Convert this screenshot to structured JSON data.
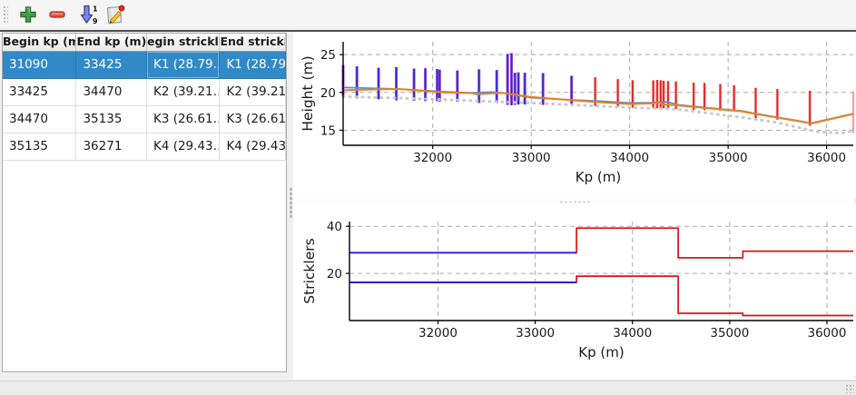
{
  "window": {
    "background": "#f0f0f0",
    "statusbar_text": ""
  },
  "toolbar": {
    "buttons": [
      {
        "name": "add",
        "icon": "plus-icon"
      },
      {
        "name": "remove",
        "icon": "minus-icon"
      },
      {
        "name": "sort",
        "icon": "sort-numeric-icon",
        "digits_top": "1",
        "digits_bottom": "9"
      },
      {
        "name": "edit",
        "icon": "edit-pencil-icon"
      }
    ]
  },
  "table": {
    "headers": [
      "Begin kp (m)",
      "End kp (m)",
      "egin strickle",
      "End strickler"
    ],
    "rows": [
      [
        "31090",
        "33425",
        "K1 (28.79…",
        "K1 (28.79…"
      ],
      [
        "33425",
        "34470",
        "K2 (39.21…",
        "K2 (39.21…"
      ],
      [
        "34470",
        "35135",
        "K3 (26.61…",
        "K3 (26.61…"
      ],
      [
        "35135",
        "36271",
        "K4 (29.43…",
        "K4 (29.43…"
      ]
    ],
    "selected_row": 0,
    "selection_color": "#3289c7"
  },
  "chart_data": [
    {
      "type": "line",
      "name": "height-profile",
      "xlabel": "Kp (m)",
      "ylabel": "Height (m)",
      "xlim": [
        31090,
        36271
      ],
      "ylim": [
        13.0,
        26.7
      ],
      "xticks": [
        32000,
        33000,
        34000,
        35000,
        36000
      ],
      "yticks": [
        15,
        20,
        25
      ],
      "grid": true,
      "series": [
        {
          "name": "cross-sections-selected",
          "type": "spikes",
          "color": "#2b2bd0",
          "fringe": "#b44fc8",
          "points": [
            [
              31090,
              19.4,
              23.6
            ],
            [
              31230,
              19.2,
              23.45
            ],
            [
              31450,
              19.1,
              23.25
            ],
            [
              31630,
              18.95,
              23.35
            ],
            [
              31810,
              18.9,
              23.15
            ],
            [
              31925,
              18.85,
              23.2
            ],
            [
              32045,
              18.85,
              23.1
            ],
            [
              32070,
              18.8,
              23.0
            ],
            [
              32250,
              18.75,
              22.9
            ],
            [
              32470,
              18.6,
              23.05
            ],
            [
              32650,
              18.6,
              22.95
            ],
            [
              32760,
              18.35,
              25.1
            ],
            [
              32800,
              18.3,
              25.2
            ],
            [
              32835,
              18.35,
              22.6
            ],
            [
              32870,
              18.4,
              22.65
            ],
            [
              32935,
              18.4,
              22.6
            ],
            [
              33120,
              18.35,
              22.55
            ],
            [
              33410,
              18.5,
              22.2
            ]
          ]
        },
        {
          "name": "cross-sections-other",
          "type": "spikes",
          "color": "#e02020",
          "fringe": "#ff9f9f",
          "points": [
            [
              33650,
              18.2,
              22.0
            ],
            [
              33880,
              18.1,
              21.75
            ],
            [
              34030,
              18.0,
              21.6
            ],
            [
              34240,
              17.95,
              21.6
            ],
            [
              34280,
              17.9,
              21.65
            ],
            [
              34315,
              17.9,
              21.6
            ],
            [
              34345,
              17.9,
              21.55
            ],
            [
              34390,
              17.85,
              21.5
            ],
            [
              34470,
              17.8,
              21.45
            ],
            [
              34650,
              17.7,
              21.3
            ],
            [
              34760,
              17.65,
              21.25
            ],
            [
              34920,
              17.6,
              21.1
            ],
            [
              35060,
              17.5,
              20.95
            ],
            [
              35280,
              16.6,
              20.6
            ],
            [
              35500,
              16.4,
              20.45
            ],
            [
              35830,
              15.6,
              20.2
            ],
            [
              36271,
              14.6,
              20.1,
              0.35
            ]
          ]
        },
        {
          "name": "water-line",
          "type": "line",
          "color": "#4f8fd0",
          "width": 1.7,
          "points": [
            [
              31090,
              20.65
            ],
            [
              31650,
              20.45
            ],
            [
              32100,
              20.1
            ],
            [
              32380,
              19.95
            ],
            [
              32480,
              20.0
            ],
            [
              32600,
              20.05
            ],
            [
              32750,
              19.85
            ],
            [
              33000,
              19.3
            ],
            [
              33425,
              19.0
            ],
            [
              33700,
              18.85
            ],
            [
              34000,
              18.6
            ],
            [
              34240,
              18.65
            ],
            [
              34380,
              18.75
            ],
            [
              34500,
              18.35
            ],
            [
              35000,
              17.7
            ],
            [
              35135,
              17.55
            ],
            [
              35300,
              17.15
            ],
            [
              35850,
              15.95
            ],
            [
              36271,
              17.2
            ]
          ]
        },
        {
          "name": "bed-line",
          "type": "line",
          "color": "#e8821e",
          "width": 2,
          "points": [
            [
              31090,
              20.3
            ],
            [
              31650,
              20.45
            ],
            [
              32100,
              20.0
            ],
            [
              32400,
              19.9
            ],
            [
              32450,
              19.75
            ],
            [
              32700,
              19.95
            ],
            [
              33000,
              19.4
            ],
            [
              33425,
              18.95
            ],
            [
              33700,
              18.7
            ],
            [
              34000,
              18.45
            ],
            [
              34240,
              18.55
            ],
            [
              34300,
              18.65
            ],
            [
              34350,
              18.4
            ],
            [
              34470,
              18.3
            ],
            [
              35000,
              17.65
            ],
            [
              35135,
              17.5
            ],
            [
              35300,
              17.1
            ],
            [
              35850,
              15.9
            ],
            [
              36271,
              17.15
            ]
          ]
        },
        {
          "name": "lower-dotted-line",
          "type": "line",
          "color": "#c9c9c9",
          "width": 3,
          "dash": "1 6",
          "cap": "round",
          "points": [
            [
              31090,
              19.45
            ],
            [
              32000,
              19.1
            ],
            [
              33000,
              18.6
            ],
            [
              34000,
              18.0
            ],
            [
              34470,
              17.8
            ],
            [
              35135,
              16.7
            ],
            [
              35500,
              16.0
            ],
            [
              35900,
              14.8
            ],
            [
              36150,
              14.6
            ],
            [
              36271,
              14.9
            ]
          ]
        }
      ]
    },
    {
      "type": "line",
      "name": "stricklers-profile",
      "xlabel": "Kp (m)",
      "ylabel": "Stricklers",
      "xlim": [
        31090,
        36271
      ],
      "ylim": [
        0,
        42
      ],
      "xticks": [
        32000,
        33000,
        34000,
        35000,
        36000
      ],
      "yticks": [
        20,
        40
      ],
      "grid": true,
      "series": [
        {
          "name": "strickler-main-steps",
          "type": "line",
          "color": "#e01010",
          "width": 1.7,
          "points": [
            [
              31090,
              28.79
            ],
            [
              33425,
              28.79
            ],
            [
              33425,
              39.21
            ],
            [
              34470,
              39.21
            ],
            [
              34470,
              26.61
            ],
            [
              35135,
              26.61
            ],
            [
              35135,
              29.43
            ],
            [
              36271,
              29.43
            ]
          ]
        },
        {
          "name": "strickler-minor-steps",
          "type": "line",
          "color": "#e01010",
          "width": 1.7,
          "points": [
            [
              31090,
              16.2
            ],
            [
              33425,
              16.2
            ],
            [
              33425,
              18.85
            ],
            [
              34470,
              18.85
            ],
            [
              34470,
              3.1
            ],
            [
              35135,
              3.1
            ],
            [
              35135,
              2.1
            ],
            [
              36271,
              2.1
            ]
          ]
        },
        {
          "name": "strickler-main-selected",
          "type": "line",
          "color": "#2a1fd4",
          "width": 1.9,
          "points": [
            [
              31090,
              28.79
            ],
            [
              33425,
              28.79
            ]
          ]
        },
        {
          "name": "strickler-minor-selected",
          "type": "line",
          "color": "#2a1fd4",
          "width": 1.9,
          "points": [
            [
              31090,
              16.2
            ],
            [
              33425,
              16.2
            ]
          ]
        }
      ]
    }
  ]
}
